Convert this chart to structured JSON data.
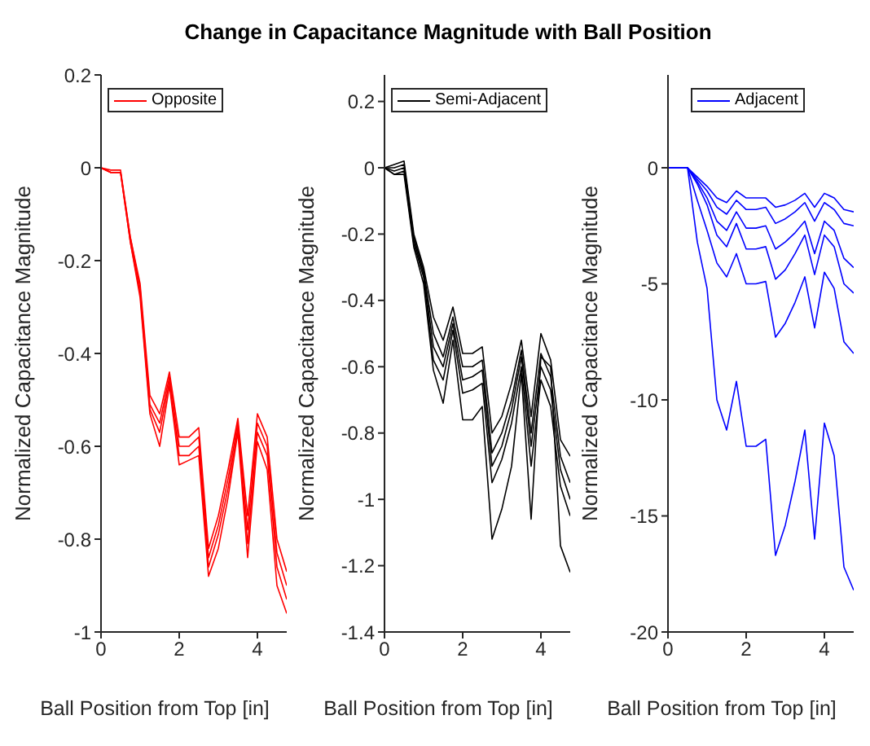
{
  "chart_data": [
    {
      "type": "line",
      "title": "Change in Capacitance Magnitude with Ball Position",
      "xlabel": "Ball Position from Top [in]",
      "ylabel": "Normalized Capacitance Magnitude",
      "x": [
        0,
        0.25,
        0.5,
        0.75,
        1,
        1.25,
        1.5,
        1.75,
        2,
        2.25,
        2.5,
        2.75,
        3,
        3.25,
        3.5,
        3.75,
        4,
        4.25,
        4.5,
        4.75
      ],
      "xlim": [
        0,
        4.75
      ],
      "xticks": [
        0,
        2,
        4
      ],
      "ylim": [
        -1,
        0.2
      ],
      "yticks": [
        -1,
        -0.8,
        -0.6,
        -0.4,
        -0.2,
        0,
        0.2
      ],
      "legend": "top left",
      "marker": "none",
      "line_style": "solid",
      "grid": false,
      "series": [
        {
          "name": "Opposite",
          "color": "#ff0000",
          "values": [
            0,
            -0.005,
            -0.005,
            -0.15,
            -0.25,
            -0.49,
            -0.53,
            -0.44,
            -0.58,
            -0.58,
            -0.56,
            -0.82,
            -0.75,
            -0.65,
            -0.54,
            -0.75,
            -0.53,
            -0.58,
            -0.8,
            -0.87
          ]
        },
        {
          "color": "#ff0000",
          "values": [
            0,
            -0.01,
            -0.01,
            -0.15,
            -0.26,
            -0.51,
            -0.55,
            -0.45,
            -0.6,
            -0.6,
            -0.58,
            -0.84,
            -0.77,
            -0.67,
            -0.55,
            -0.78,
            -0.55,
            -0.6,
            -0.83,
            -0.9
          ]
        },
        {
          "color": "#ff0000",
          "values": [
            0,
            -0.01,
            -0.01,
            -0.16,
            -0.27,
            -0.52,
            -0.57,
            -0.46,
            -0.62,
            -0.62,
            -0.6,
            -0.86,
            -0.79,
            -0.69,
            -0.56,
            -0.81,
            -0.57,
            -0.62,
            -0.86,
            -0.93
          ]
        },
        {
          "color": "#ff0000",
          "values": [
            0,
            -0.01,
            -0.01,
            -0.16,
            -0.28,
            -0.53,
            -0.6,
            -0.47,
            -0.64,
            -0.63,
            -0.62,
            -0.88,
            -0.82,
            -0.71,
            -0.57,
            -0.84,
            -0.59,
            -0.65,
            -0.9,
            -0.96
          ]
        }
      ]
    },
    {
      "type": "line",
      "xlabel": "Ball Position from Top [in]",
      "ylabel": "Normalized Capacitance Magnitude",
      "x": [
        0,
        0.25,
        0.5,
        0.75,
        1,
        1.25,
        1.5,
        1.75,
        2,
        2.25,
        2.5,
        2.75,
        3,
        3.25,
        3.5,
        3.75,
        4,
        4.25,
        4.5,
        4.75
      ],
      "xlim": [
        0,
        4.75
      ],
      "xticks": [
        0,
        2,
        4
      ],
      "ylim": [
        -1.4,
        0.28
      ],
      "yticks": [
        -1.4,
        -1.2,
        -1,
        -0.8,
        -0.6,
        -0.4,
        -0.2,
        0,
        0.2
      ],
      "legend": "top left",
      "marker": "none",
      "line_style": "solid",
      "grid": false,
      "series": [
        {
          "name": "Semi-Adjacent",
          "color": "#000000",
          "values": [
            0,
            0.01,
            0.02,
            -0.2,
            -0.3,
            -0.45,
            -0.52,
            -0.42,
            -0.56,
            -0.56,
            -0.54,
            -0.8,
            -0.75,
            -0.65,
            -0.52,
            -0.75,
            -0.5,
            -0.58,
            -0.82,
            -0.87
          ]
        },
        {
          "color": "#000000",
          "values": [
            0,
            0,
            0.01,
            -0.21,
            -0.31,
            -0.5,
            -0.57,
            -0.45,
            -0.6,
            -0.6,
            -0.58,
            -0.86,
            -0.8,
            -0.7,
            -0.55,
            -0.8,
            -0.56,
            -0.63,
            -0.87,
            -0.95
          ]
        },
        {
          "color": "#000000",
          "values": [
            0,
            -0.01,
            0,
            -0.22,
            -0.32,
            -0.54,
            -0.6,
            -0.47,
            -0.64,
            -0.63,
            -0.61,
            -0.9,
            -0.84,
            -0.73,
            -0.57,
            -0.84,
            -0.6,
            -0.67,
            -0.91,
            -1.0
          ]
        },
        {
          "color": "#000000",
          "values": [
            0,
            -0.02,
            -0.01,
            -0.23,
            -0.33,
            -0.58,
            -0.64,
            -0.49,
            -0.68,
            -0.67,
            -0.65,
            -0.95,
            -0.88,
            -0.77,
            -0.6,
            -0.9,
            -0.64,
            -0.72,
            -0.96,
            -1.05
          ]
        },
        {
          "color": "#000000",
          "values": [
            0,
            -0.02,
            -0.02,
            -0.24,
            -0.35,
            -0.61,
            -0.71,
            -0.52,
            -0.76,
            -0.76,
            -0.72,
            -1.12,
            -1.03,
            -0.9,
            -0.62,
            -1.06,
            -0.57,
            -0.6,
            -1.14,
            -1.22
          ]
        }
      ]
    },
    {
      "type": "line",
      "xlabel": "Ball Position from Top [in]",
      "ylabel": "Normalized Capacitance Magnitude",
      "x": [
        0,
        0.25,
        0.5,
        0.75,
        1,
        1.25,
        1.5,
        1.75,
        2,
        2.25,
        2.5,
        2.75,
        3,
        3.25,
        3.5,
        3.75,
        4,
        4.25,
        4.5,
        4.75
      ],
      "xlim": [
        0,
        4.75
      ],
      "xticks": [
        0,
        2,
        4
      ],
      "ylim": [
        -20,
        4
      ],
      "yticks": [
        -20,
        -15,
        -10,
        -5,
        0
      ],
      "legend": "top",
      "marker": "none",
      "line_style": "solid",
      "grid": false,
      "series": [
        {
          "name": "Adjacent",
          "color": "#0000ff",
          "values": [
            0,
            0,
            0,
            -0.4,
            -0.8,
            -1.3,
            -1.5,
            -1.0,
            -1.3,
            -1.3,
            -1.3,
            -1.7,
            -1.6,
            -1.4,
            -1.1,
            -1.7,
            -1.1,
            -1.3,
            -1.8,
            -1.9
          ]
        },
        {
          "color": "#0000ff",
          "values": [
            0,
            0,
            0,
            -0.5,
            -1.0,
            -1.7,
            -2.0,
            -1.4,
            -1.8,
            -1.8,
            -1.7,
            -2.4,
            -2.2,
            -1.9,
            -1.5,
            -2.3,
            -1.5,
            -1.8,
            -2.4,
            -2.5
          ]
        },
        {
          "color": "#0000ff",
          "values": [
            0,
            0,
            0,
            -0.6,
            -1.3,
            -2.3,
            -2.7,
            -1.9,
            -2.6,
            -2.6,
            -2.5,
            -3.5,
            -3.2,
            -2.8,
            -2.3,
            -3.7,
            -2.3,
            -2.7,
            -3.9,
            -4.3
          ]
        },
        {
          "color": "#0000ff",
          "values": [
            0,
            0,
            0,
            -0.7,
            -1.6,
            -2.9,
            -3.4,
            -2.4,
            -3.5,
            -3.5,
            -3.4,
            -4.8,
            -4.4,
            -3.7,
            -2.9,
            -4.6,
            -2.9,
            -3.4,
            -5.0,
            -5.4
          ]
        },
        {
          "color": "#0000ff",
          "values": [
            0,
            0,
            0,
            -1.4,
            -2.7,
            -4.1,
            -4.7,
            -3.7,
            -5.0,
            -5.0,
            -4.9,
            -7.3,
            -6.7,
            -5.8,
            -4.7,
            -6.9,
            -4.5,
            -5.2,
            -7.5,
            -8.0
          ]
        },
        {
          "color": "#0000ff",
          "values": [
            0,
            0,
            0,
            -3.2,
            -5.2,
            -10.0,
            -11.3,
            -9.2,
            -12.0,
            -12.0,
            -11.7,
            -16.7,
            -15.4,
            -13.5,
            -11.3,
            -16.0,
            -11.0,
            -12.4,
            -17.2,
            -18.2
          ]
        }
      ]
    }
  ]
}
